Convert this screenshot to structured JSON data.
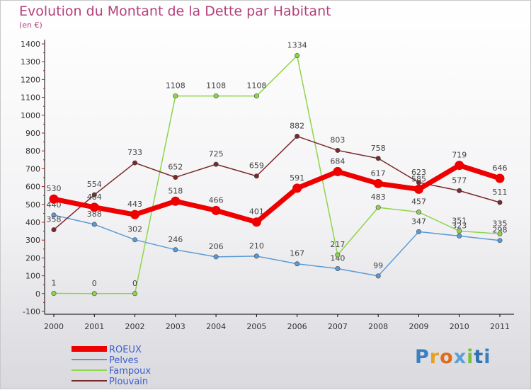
{
  "title": "Evolution du Montant de la Dette par Habitant",
  "subtitle": "(en €)",
  "logo_text": "Proxiti",
  "chart_data": {
    "type": "line",
    "title": "Evolution du Montant de la Dette par Habitant",
    "ylabel": "(en €)",
    "xlabel": "",
    "ylim": [
      -100,
      1400
    ],
    "yticks": [
      -100,
      0,
      100,
      200,
      300,
      400,
      500,
      600,
      700,
      800,
      900,
      1000,
      1100,
      1200,
      1300,
      1400
    ],
    "categories": [
      "2000",
      "2001",
      "2002",
      "2003",
      "2004",
      "2005",
      "2006",
      "2007",
      "2008",
      "2009",
      "2010",
      "2011"
    ],
    "legend_position": "bottom-left",
    "grid": false,
    "series": [
      {
        "name": "ROEUX",
        "color": "#ee0000",
        "values": [
          530,
          484,
          443,
          518,
          466,
          401,
          591,
          684,
          617,
          585,
          719,
          646
        ]
      },
      {
        "name": "Pelves",
        "color": "#5b9bd5",
        "values": [
          440,
          388,
          302,
          246,
          206,
          210,
          167,
          140,
          99,
          347,
          323,
          298
        ]
      },
      {
        "name": "Fampoux",
        "color": "#8fd44a",
        "values": [
          1,
          0,
          0,
          1108,
          1108,
          1108,
          1334,
          217,
          483,
          457,
          351,
          335
        ]
      },
      {
        "name": "Plouvain",
        "color": "#7a2a2a",
        "values": [
          358,
          554,
          733,
          652,
          725,
          659,
          882,
          803,
          758,
          623,
          577,
          511
        ]
      }
    ]
  }
}
